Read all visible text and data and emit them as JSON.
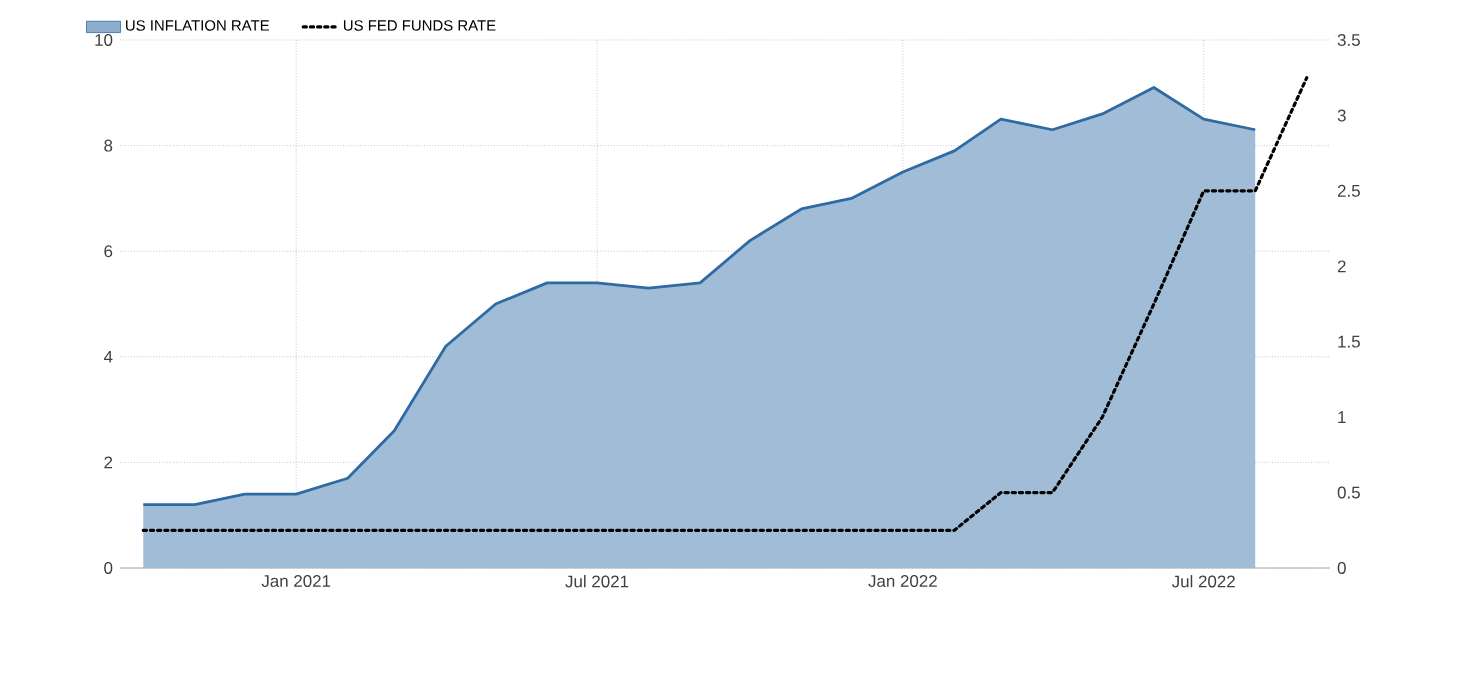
{
  "chart_data": {
    "type": "area",
    "x": [
      "2020-10",
      "2020-11",
      "2020-12",
      "2021-01",
      "2021-02",
      "2021-03",
      "2021-04",
      "2021-05",
      "2021-06",
      "2021-07",
      "2021-08",
      "2021-09",
      "2021-10",
      "2021-11",
      "2021-12",
      "2022-01",
      "2022-02",
      "2022-03",
      "2022-04",
      "2022-05",
      "2022-06",
      "2022-07",
      "2022-08",
      "2022-09"
    ],
    "series": [
      {
        "name": "US INFLATION RATE",
        "color": "#2f6aa3",
        "values": [
          1.2,
          1.2,
          1.4,
          1.4,
          1.7,
          2.6,
          4.2,
          5.0,
          5.4,
          5.4,
          5.3,
          5.4,
          6.2,
          6.8,
          7.0,
          7.5,
          7.9,
          8.5,
          8.3,
          8.6,
          9.1,
          8.5,
          8.3,
          null
        ]
      },
      {
        "name": "US FED FUNDS RATE",
        "type": "line",
        "axis": "y2",
        "line_style": "dotted",
        "color": "#000000",
        "values": [
          0.25,
          0.25,
          0.25,
          0.25,
          0.25,
          0.25,
          0.25,
          0.25,
          0.25,
          0.25,
          0.25,
          0.25,
          0.25,
          0.25,
          0.25,
          0.25,
          0.25,
          0.5,
          0.5,
          1.0,
          1.75,
          2.5,
          2.5,
          3.25
        ]
      }
    ],
    "xlim": [
      "2020-09-17",
      "2022-09-15"
    ],
    "xticks": [
      {
        "value": "2021-01",
        "label": "Jan 2021"
      },
      {
        "value": "2021-07",
        "label": "Jul 2021"
      },
      {
        "value": "2022-01",
        "label": "Jan 2022"
      },
      {
        "value": "2022-07",
        "label": "Jul 2022"
      }
    ],
    "ylim": [
      0,
      10
    ],
    "yticks": [
      0,
      2,
      4,
      6,
      8,
      10
    ],
    "y2lim": [
      0,
      3.5
    ],
    "y2ticks": [
      0,
      0.5,
      1,
      1.5,
      2,
      2.5,
      3,
      3.5
    ],
    "grid": true,
    "legend": "top left"
  }
}
